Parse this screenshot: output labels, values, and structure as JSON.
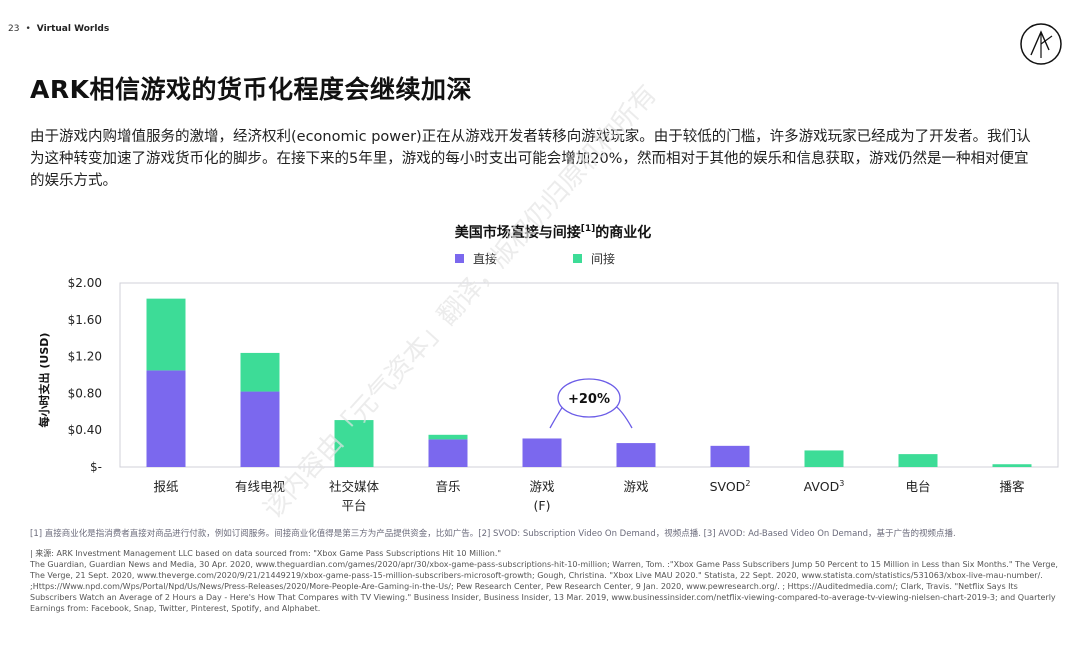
{
  "header": {
    "page_number": "23",
    "bullet": "•",
    "section": "Virtual Worlds"
  },
  "title": "ARK相信游戏的货币化程度会继续加深",
  "body_text": "由于游戏内购增值服务的激增，经济权利(economic power)正在从游戏开发者转移向游戏玩家。由于较低的门槛，许多游戏玩家已经成为了开发者。我们认为这种转变加速了游戏货币化的脚步。在接下来的5年里，游戏的每小时支出可能会增加20%，然而相对于其他的娱乐和信息获取，游戏仍然是一种相对便宜的娱乐方式。",
  "colors": {
    "direct": "#7b68ee",
    "indirect": "#3ddc97",
    "frame": "#d0d0d8",
    "callout": "#6b5ce7"
  },
  "chart_data": {
    "type": "bar",
    "stacked": true,
    "title": "美国市场直接与间接",
    "title_sup": "[1]",
    "title_suffix": "的商业化",
    "ylabel": "每小时支出 (USD)",
    "ylim": [
      0,
      2.0
    ],
    "yticks": [
      {
        "value": 0,
        "label": "$-"
      },
      {
        "value": 0.4,
        "label": "$0.40"
      },
      {
        "value": 0.8,
        "label": "$0.80"
      },
      {
        "value": 1.2,
        "label": "$1.20"
      },
      {
        "value": 1.6,
        "label": "$1.60"
      },
      {
        "value": 2.0,
        "label": "$2.00"
      }
    ],
    "categories": [
      {
        "label": "报纸",
        "sup": ""
      },
      {
        "label": "有线电视",
        "sup": ""
      },
      {
        "label": "社交媒体",
        "line2": "平台",
        "sup": ""
      },
      {
        "label": "音乐",
        "sup": ""
      },
      {
        "label": "游戏",
        "line2": "(F)",
        "sup": ""
      },
      {
        "label": "游戏",
        "sup": ""
      },
      {
        "label": "SVOD",
        "sup": "2"
      },
      {
        "label": "AVOD",
        "sup": "3"
      },
      {
        "label": "电台",
        "sup": ""
      },
      {
        "label": "播客",
        "sup": ""
      }
    ],
    "series": [
      {
        "name": "直接",
        "values": [
          1.05,
          0.82,
          0,
          0.3,
          0.31,
          0.26,
          0.23,
          0,
          0,
          0
        ]
      },
      {
        "name": "间接",
        "values": [
          0.78,
          0.42,
          0.51,
          0.05,
          0,
          0,
          0,
          0.18,
          0.14,
          0.03
        ]
      }
    ],
    "annotation": "+20%",
    "grid": false,
    "legend_position": "top"
  },
  "footnote": "[1] 直接商业化是指消费者直接对商品进行付款，例如订阅服务。间接商业化值得是第三方为产品提供资金，比如广告。[2] SVOD: Subscription Video On Demand，视频点播. [3] AVOD: Ad-Based Video On Demand，基于广告的视频点播.",
  "source": [
    "| 来源: ARK Investment Management LLC based on data sourced from: \"Xbox Game Pass Subscriptions Hit 10 Million.\"",
    "The Guardian, Guardian News and Media, 30 Apr. 2020, www.theguardian.com/games/2020/apr/30/xbox-game-pass-subscriptions-hit-10-million; Warren, Tom. :\"Xbox Game Pass Subscribers Jump 50 Percent to 15 Million in Less than Six Months.\" The Verge, The Verge, 21 Sept. 2020, www.theverge.com/2020/9/21/21449219/xbox-game-pass-15-million-subscribers-microsoft-growth; Gough, Christina. \"Xbox Live MAU 2020.\" Statista, 22 Sept. 2020, www.statista.com/statistics/531063/xbox-live-mau-number/. ;Https://Www.npd.com/Wps/Portal/Npd/Us/News/Press-Releases/2020/More-People-Are-Gaming-in-the-Us/; Pew Research Center, Pew Research Center, 9 Jan. 2020, www.pewresearch.org/. ; Https://Auditedmedia.com/; Clark, Travis. \"Netflix Says Its Subscribers Watch an Average of 2 Hours a Day - Here's How That Compares with TV Viewing.\" Business Insider, Business Insider, 13 Mar. 2019, www.businessinsider.com/netflix-viewing-compared-to-average-tv-viewing-nielsen-chart-2019-3; and Quarterly Earnings from: Facebook, Snap, Twitter, Pinterest, Spotify, and Alphabet."
  ],
  "watermark": "该内容由「元气资本」翻译，版权仍归原机构所有"
}
